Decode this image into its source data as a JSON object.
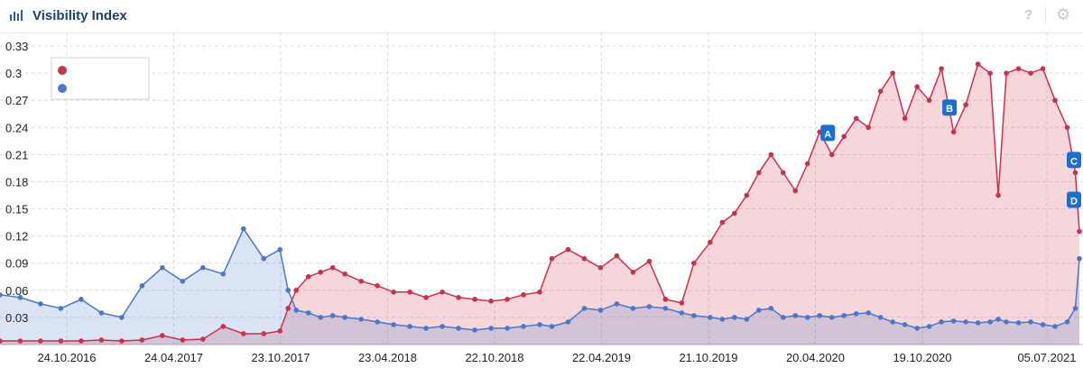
{
  "header": {
    "title": "Visibility Index",
    "icon": "bar-chart-icon",
    "help_icon": "question-icon",
    "help_glyph": "?",
    "settings_icon": "gear-icon",
    "settings_glyph": "⚙"
  },
  "colors": {
    "red": "#c8324a",
    "blue": "#4b77c9",
    "red_fill": "#f0d3d7",
    "blue_fill": "#d8e0f2",
    "overlap_fill": "#cdc6dc",
    "marker": "#1a6fd1"
  },
  "chart_data": {
    "type": "area",
    "x_tick_labels": [
      "24.10.2016",
      "24.04.2017",
      "23.10.2017",
      "23.04.2018",
      "22.10.2018",
      "22.04.2019",
      "21.10.2019",
      "20.04.2020",
      "19.10.2020",
      "05.07.2021"
    ],
    "y_ticks": [
      0.03,
      0.06,
      0.09,
      0.12,
      0.15,
      0.18,
      0.21,
      0.24,
      0.27,
      0.3,
      0.33
    ],
    "ylim": [
      0,
      0.345
    ],
    "x_range": [
      "2016-05-30",
      "2021-07-05"
    ],
    "grid": true,
    "legend": {
      "placement": "top-left",
      "entries": [
        {
          "color": "red",
          "label": ""
        },
        {
          "color": "blue",
          "label": ""
        }
      ]
    },
    "series": [
      {
        "color": "red",
        "values": [
          [
            "2016-05-30",
            0.004
          ],
          [
            "2016-07-04",
            0.004
          ],
          [
            "2016-08-08",
            0.004
          ],
          [
            "2016-09-12",
            0.004
          ],
          [
            "2016-10-17",
            0.004
          ],
          [
            "2016-11-21",
            0.005
          ],
          [
            "2016-12-26",
            0.004
          ],
          [
            "2017-01-30",
            0.005
          ],
          [
            "2017-03-06",
            0.01
          ],
          [
            "2017-04-10",
            0.005
          ],
          [
            "2017-05-15",
            0.006
          ],
          [
            "2017-06-19",
            0.02
          ],
          [
            "2017-07-24",
            0.012
          ],
          [
            "2017-08-28",
            0.012
          ],
          [
            "2017-09-25",
            0.015
          ],
          [
            "2017-10-09",
            0.04
          ],
          [
            "2017-10-23",
            0.06
          ],
          [
            "2017-11-13",
            0.075
          ],
          [
            "2017-12-04",
            0.08
          ],
          [
            "2017-12-25",
            0.085
          ],
          [
            "2018-01-15",
            0.078
          ],
          [
            "2018-02-12",
            0.07
          ],
          [
            "2018-03-12",
            0.065
          ],
          [
            "2018-04-09",
            0.058
          ],
          [
            "2018-05-07",
            0.058
          ],
          [
            "2018-06-04",
            0.052
          ],
          [
            "2018-07-02",
            0.058
          ],
          [
            "2018-07-30",
            0.052
          ],
          [
            "2018-08-27",
            0.05
          ],
          [
            "2018-09-24",
            0.048
          ],
          [
            "2018-10-22",
            0.05
          ],
          [
            "2018-11-19",
            0.055
          ],
          [
            "2018-12-17",
            0.058
          ],
          [
            "2019-01-07",
            0.095
          ],
          [
            "2019-02-04",
            0.105
          ],
          [
            "2019-03-04",
            0.095
          ],
          [
            "2019-04-01",
            0.085
          ],
          [
            "2019-04-29",
            0.098
          ],
          [
            "2019-05-27",
            0.08
          ],
          [
            "2019-06-24",
            0.092
          ],
          [
            "2019-07-22",
            0.05
          ],
          [
            "2019-08-19",
            0.046
          ],
          [
            "2019-09-09",
            0.09
          ],
          [
            "2019-10-07",
            0.113
          ],
          [
            "2019-10-28",
            0.135
          ],
          [
            "2019-11-18",
            0.145
          ],
          [
            "2019-12-09",
            0.165
          ],
          [
            "2019-12-30",
            0.19
          ],
          [
            "2020-01-20",
            0.21
          ],
          [
            "2020-02-10",
            0.19
          ],
          [
            "2020-03-02",
            0.17
          ],
          [
            "2020-03-23",
            0.2
          ],
          [
            "2020-04-13",
            0.235
          ],
          [
            "2020-05-04",
            0.21
          ],
          [
            "2020-05-25",
            0.23
          ],
          [
            "2020-06-15",
            0.25
          ],
          [
            "2020-07-06",
            0.24
          ],
          [
            "2020-07-27",
            0.28
          ],
          [
            "2020-08-17",
            0.3
          ],
          [
            "2020-09-07",
            0.25
          ],
          [
            "2020-09-28",
            0.285
          ],
          [
            "2020-10-19",
            0.27
          ],
          [
            "2020-11-09",
            0.305
          ],
          [
            "2020-11-30",
            0.235
          ],
          [
            "2020-12-21",
            0.265
          ],
          [
            "2021-01-11",
            0.31
          ],
          [
            "2021-02-01",
            0.3
          ],
          [
            "2021-02-15",
            0.165
          ],
          [
            "2021-03-01",
            0.3
          ],
          [
            "2021-03-22",
            0.305
          ],
          [
            "2021-04-12",
            0.3
          ],
          [
            "2021-05-03",
            0.305
          ],
          [
            "2021-05-24",
            0.27
          ],
          [
            "2021-06-14",
            0.24
          ],
          [
            "2021-06-28",
            0.19
          ],
          [
            "2021-07-05",
            0.125
          ]
        ]
      },
      {
        "color": "blue",
        "values": [
          [
            "2016-05-30",
            0.055
          ],
          [
            "2016-07-04",
            0.052
          ],
          [
            "2016-08-08",
            0.045
          ],
          [
            "2016-09-12",
            0.04
          ],
          [
            "2016-10-17",
            0.05
          ],
          [
            "2016-11-21",
            0.035
          ],
          [
            "2016-12-26",
            0.03
          ],
          [
            "2017-01-30",
            0.065
          ],
          [
            "2017-03-06",
            0.085
          ],
          [
            "2017-04-10",
            0.07
          ],
          [
            "2017-05-15",
            0.085
          ],
          [
            "2017-06-19",
            0.078
          ],
          [
            "2017-07-24",
            0.128
          ],
          [
            "2017-08-28",
            0.095
          ],
          [
            "2017-09-25",
            0.105
          ],
          [
            "2017-10-09",
            0.06
          ],
          [
            "2017-10-23",
            0.038
          ],
          [
            "2017-11-13",
            0.035
          ],
          [
            "2017-12-04",
            0.03
          ],
          [
            "2017-12-25",
            0.032
          ],
          [
            "2018-01-15",
            0.03
          ],
          [
            "2018-02-12",
            0.028
          ],
          [
            "2018-03-12",
            0.025
          ],
          [
            "2018-04-09",
            0.022
          ],
          [
            "2018-05-07",
            0.02
          ],
          [
            "2018-06-04",
            0.018
          ],
          [
            "2018-07-02",
            0.02
          ],
          [
            "2018-07-30",
            0.018
          ],
          [
            "2018-08-27",
            0.016
          ],
          [
            "2018-09-24",
            0.018
          ],
          [
            "2018-10-22",
            0.018
          ],
          [
            "2018-11-19",
            0.02
          ],
          [
            "2018-12-17",
            0.022
          ],
          [
            "2019-01-07",
            0.02
          ],
          [
            "2019-02-04",
            0.025
          ],
          [
            "2019-03-04",
            0.04
          ],
          [
            "2019-04-01",
            0.038
          ],
          [
            "2019-04-29",
            0.045
          ],
          [
            "2019-05-27",
            0.04
          ],
          [
            "2019-06-24",
            0.042
          ],
          [
            "2019-07-22",
            0.04
          ],
          [
            "2019-08-19",
            0.035
          ],
          [
            "2019-09-09",
            0.032
          ],
          [
            "2019-10-07",
            0.03
          ],
          [
            "2019-10-28",
            0.028
          ],
          [
            "2019-11-18",
            0.03
          ],
          [
            "2019-12-09",
            0.028
          ],
          [
            "2019-12-30",
            0.038
          ],
          [
            "2020-01-20",
            0.04
          ],
          [
            "2020-02-10",
            0.03
          ],
          [
            "2020-03-02",
            0.032
          ],
          [
            "2020-03-23",
            0.03
          ],
          [
            "2020-04-13",
            0.032
          ],
          [
            "2020-05-04",
            0.03
          ],
          [
            "2020-05-25",
            0.032
          ],
          [
            "2020-06-15",
            0.034
          ],
          [
            "2020-07-06",
            0.035
          ],
          [
            "2020-07-27",
            0.03
          ],
          [
            "2020-08-17",
            0.025
          ],
          [
            "2020-09-07",
            0.022
          ],
          [
            "2020-09-28",
            0.018
          ],
          [
            "2020-10-19",
            0.02
          ],
          [
            "2020-11-09",
            0.025
          ],
          [
            "2020-11-30",
            0.026
          ],
          [
            "2020-12-21",
            0.025
          ],
          [
            "2021-01-11",
            0.024
          ],
          [
            "2021-02-01",
            0.025
          ],
          [
            "2021-02-15",
            0.028
          ],
          [
            "2021-03-01",
            0.025
          ],
          [
            "2021-03-22",
            0.024
          ],
          [
            "2021-04-12",
            0.025
          ],
          [
            "2021-05-03",
            0.022
          ],
          [
            "2021-05-24",
            0.02
          ],
          [
            "2021-06-14",
            0.025
          ],
          [
            "2021-06-28",
            0.04
          ],
          [
            "2021-07-05",
            0.095
          ]
        ]
      }
    ],
    "annotations": [
      {
        "label": "A",
        "date": "2020-04-27",
        "value": 0.234
      },
      {
        "label": "B",
        "date": "2020-11-23",
        "value": 0.262
      },
      {
        "label": "C",
        "date": "2021-06-28",
        "value": 0.204
      },
      {
        "label": "D",
        "date": "2021-07-05",
        "value": 0.16
      }
    ]
  }
}
